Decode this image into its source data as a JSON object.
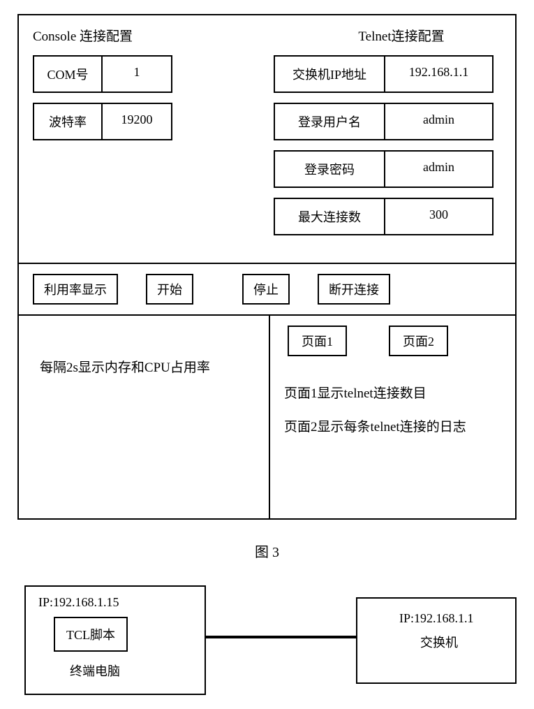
{
  "figure3": {
    "console": {
      "title": "Console 连接配置",
      "com_label": "COM号",
      "com_value": "1",
      "baud_label": "波特率",
      "baud_value": "19200"
    },
    "telnet": {
      "title": "Telnet连接配置",
      "ip_label": "交换机IP地址",
      "ip_value": "192.168.1.1",
      "user_label": "登录用户名",
      "user_value": "admin",
      "pass_label": "登录密码",
      "pass_value": "admin",
      "max_label": "最大连接数",
      "max_value": "300"
    },
    "toolbar": {
      "util": "利用率显示",
      "start": "开始",
      "stop": "停止",
      "disconnect": "断开连接"
    },
    "left_panel": {
      "text": "每隔2s显示内存和CPU占用率"
    },
    "right_panel": {
      "tab1": "页面1",
      "tab2": "页面2",
      "line1": "页面1显示telnet连接数目",
      "line2": "页面2显示每条telnet连接的日志"
    },
    "caption": "图 3"
  },
  "figure4": {
    "left": {
      "ip": "IP:192.168.1.15",
      "tcl": "TCL脚本",
      "label": "终端电脑"
    },
    "right": {
      "ip": "IP:192.168.1.1",
      "label": "交换机"
    }
  },
  "style": {
    "border_color": "#000000",
    "background": "#ffffff",
    "text_color": "#000000",
    "font_family": "SimSun",
    "base_fontsize": 18,
    "border_width": 2
  }
}
